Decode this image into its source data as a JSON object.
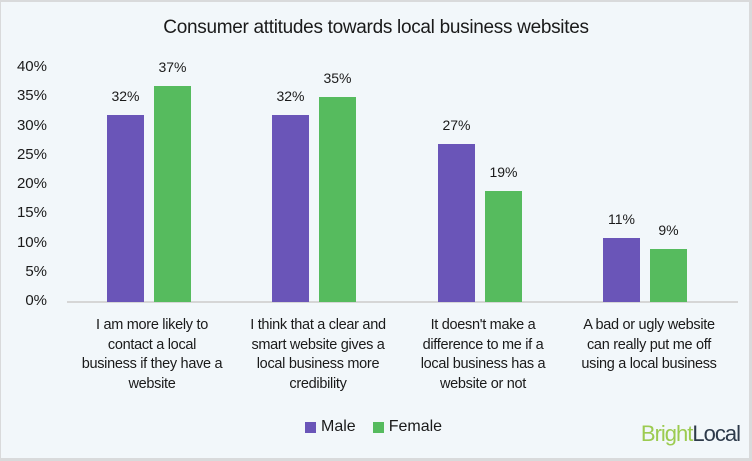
{
  "chart_data": {
    "type": "bar",
    "title": "Consumer attitudes towards local business websites",
    "xlabel": "",
    "ylabel": "",
    "ylim": [
      0,
      40
    ],
    "yticks": [
      "0%",
      "5%",
      "10%",
      "15%",
      "20%",
      "25%",
      "30%",
      "35%",
      "40%"
    ],
    "grid": false,
    "legend_position": "bottom",
    "categories": [
      "I am more likely to contact a local business if they have a website",
      "I think that a clear and smart website gives a local business more credibility",
      "It doesn't make a difference to me if a local business has a website or not",
      "A bad or ugly website can really put me off using a local business"
    ],
    "series": [
      {
        "name": "Male",
        "color": "#6a55b8",
        "values": [
          32,
          32,
          27,
          11
        ],
        "labels": [
          "32%",
          "32%",
          "27%",
          "11%"
        ]
      },
      {
        "name": "Female",
        "color": "#56bb5e",
        "values": [
          37,
          35,
          19,
          9
        ],
        "labels": [
          "37%",
          "35%",
          "19%",
          "9%"
        ]
      }
    ]
  },
  "category_lines": [
    [
      "I am more likely to",
      "contact a local",
      "business if they have a",
      "website"
    ],
    [
      "I think that a clear and",
      "smart website gives a",
      "local business more",
      "credibility"
    ],
    [
      "It doesn't make a",
      "difference to me if a",
      "local business has a",
      "website or not"
    ],
    [
      "A bad or ugly website",
      "can really put me off",
      "using a local business"
    ]
  ],
  "legend": {
    "male": "Male",
    "female": "Female"
  },
  "brand": {
    "part1": "Bright",
    "part2": "Local"
  }
}
